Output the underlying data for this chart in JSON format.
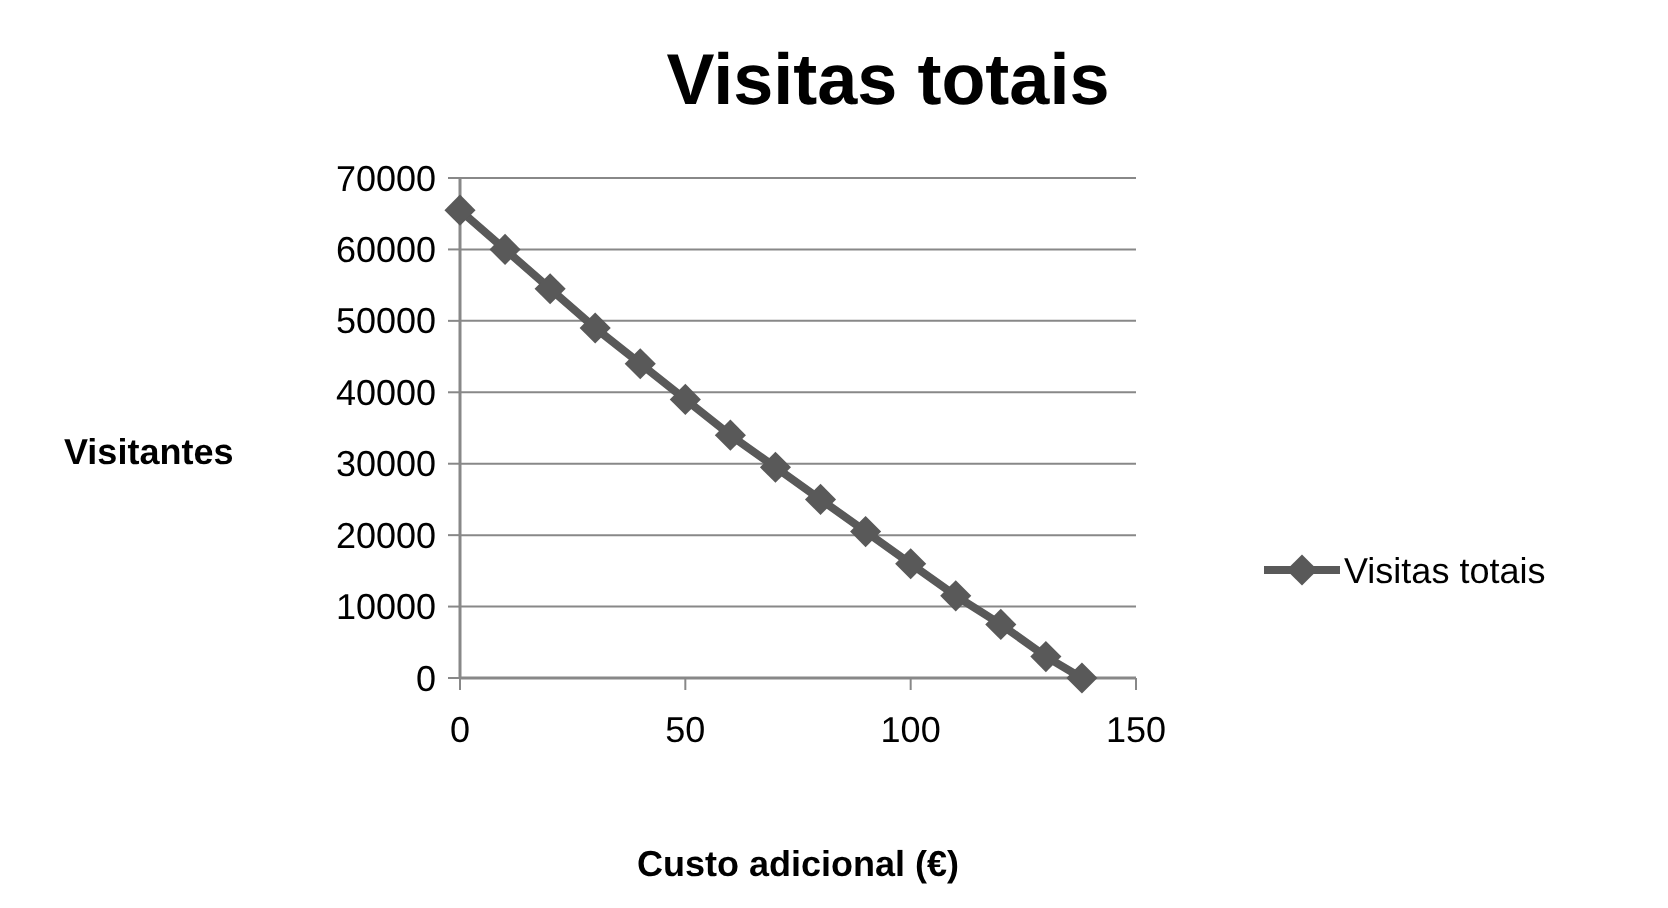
{
  "chart_data": {
    "type": "line",
    "title": "Visitas totais",
    "xlabel": "Custo adicional (€)",
    "ylabel": "Visitantes",
    "x": [
      0,
      10,
      20,
      30,
      40,
      50,
      60,
      70,
      80,
      90,
      100,
      110,
      120,
      130,
      138
    ],
    "series": [
      {
        "name": "Visitas totais",
        "color": "#595959",
        "values": [
          65500,
          60000,
          54500,
          49000,
          44000,
          39000,
          34000,
          29500,
          25000,
          20500,
          16000,
          11500,
          7500,
          3000,
          0
        ]
      }
    ],
    "xlim": [
      0,
      150
    ],
    "xticks": [
      0,
      50,
      100,
      150
    ],
    "ylim": [
      0,
      70000
    ],
    "yticks": [
      0,
      10000,
      20000,
      30000,
      40000,
      50000,
      60000,
      70000
    ],
    "grid": "y",
    "legend": "right",
    "marker": "diamond",
    "line_style": "solid"
  }
}
